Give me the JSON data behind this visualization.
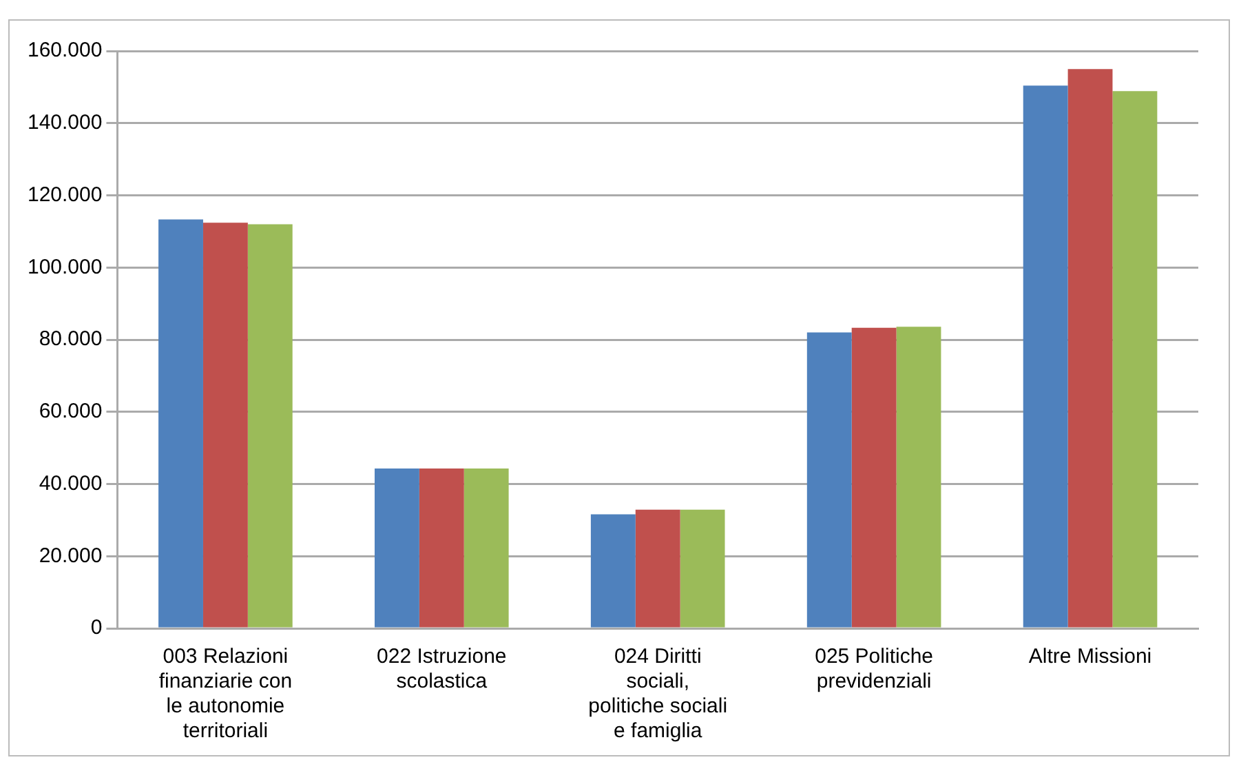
{
  "chart_data": {
    "type": "bar",
    "categories": [
      "003 Relazioni finanziarie con le autonomie territoriali",
      "022 Istruzione scolastica",
      "024 Diritti sociali, politiche sociali e famiglia",
      "025 Politiche previdenziali",
      "Altre Missioni"
    ],
    "series": [
      {
        "color": "#4f81bd",
        "values": [
          113300,
          44300,
          31600,
          82000,
          150400
        ]
      },
      {
        "color": "#c0504d",
        "values": [
          112400,
          44300,
          32900,
          83300,
          155000
        ]
      },
      {
        "color": "#9bbb59",
        "values": [
          112000,
          44300,
          32900,
          83600,
          148900
        ]
      }
    ],
    "ylim": [
      0,
      160000
    ],
    "yticks": [
      0,
      {
        "value": 20000,
        "label": "20.000"
      },
      {
        "value": 40000,
        "label": "40.000"
      },
      {
        "value": 60000,
        "label": "60.000"
      },
      {
        "value": 80000,
        "label": "80.000"
      },
      {
        "value": 100000,
        "label": "100.000"
      },
      {
        "value": 120000,
        "label": "120.000"
      },
      {
        "value": 140000,
        "label": "140.000"
      },
      {
        "value": 160000,
        "label": "160.000"
      }
    ],
    "grid": "y",
    "legend": false
  }
}
